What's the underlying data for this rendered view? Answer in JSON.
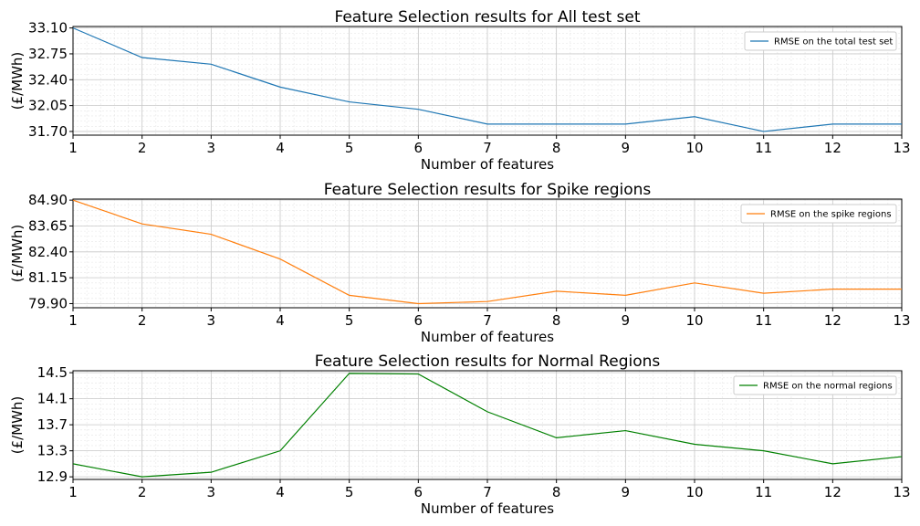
{
  "colors": {
    "blue": "#1f77b4",
    "orange": "#ff7f0e",
    "green": "#008000"
  },
  "chart_data": [
    {
      "type": "line",
      "title": "Feature Selection results for All test set",
      "xlabel": "Number of features",
      "ylabel": "(£/MWh)",
      "x": [
        1,
        2,
        3,
        4,
        5,
        6,
        7,
        8,
        9,
        10,
        11,
        12,
        13
      ],
      "xlim": [
        1,
        13
      ],
      "ylim": [
        31.65,
        33.12
      ],
      "yticks": [
        "31.70",
        "32.05",
        "32.40",
        "32.75",
        "33.10"
      ],
      "xticks": [
        "1",
        "2",
        "3",
        "4",
        "5",
        "6",
        "7",
        "8",
        "9",
        "10",
        "11",
        "12",
        "13"
      ],
      "grid": true,
      "legend_position": "top-right",
      "series": [
        {
          "name": "RMSE on the total test set",
          "color": "#1f77b4",
          "values": [
            33.1,
            32.7,
            32.61,
            32.3,
            32.1,
            32.0,
            31.8,
            31.8,
            31.8,
            31.9,
            31.7,
            31.8,
            31.8
          ]
        }
      ]
    },
    {
      "type": "line",
      "title": "Feature Selection results for Spike regions",
      "xlabel": "Number of features",
      "ylabel": "(£/MWh)",
      "x": [
        1,
        2,
        3,
        4,
        5,
        6,
        7,
        8,
        9,
        10,
        11,
        12,
        13
      ],
      "xlim": [
        1,
        13
      ],
      "ylim": [
        79.7,
        84.95
      ],
      "yticks": [
        "79.90",
        "81.15",
        "82.40",
        "83.65",
        "84.90"
      ],
      "xticks": [
        "1",
        "2",
        "3",
        "4",
        "5",
        "6",
        "7",
        "8",
        "9",
        "10",
        "11",
        "12",
        "13"
      ],
      "grid": true,
      "legend_position": "top-right",
      "series": [
        {
          "name": "RMSE on the spike regions",
          "color": "#ff7f0e",
          "values": [
            84.9,
            83.75,
            83.25,
            82.05,
            80.3,
            79.9,
            80.0,
            80.5,
            80.3,
            80.9,
            80.4,
            80.6,
            80.6
          ]
        }
      ]
    },
    {
      "type": "line",
      "title": "Feature Selection results for Normal Regions",
      "xlabel": "Number of features",
      "ylabel": "(£/MWh)",
      "x": [
        1,
        2,
        3,
        4,
        5,
        6,
        7,
        8,
        9,
        10,
        11,
        12,
        13
      ],
      "xlim": [
        1,
        13
      ],
      "ylim": [
        12.86,
        14.53
      ],
      "yticks": [
        "12.9",
        "13.3",
        "13.7",
        "14.1",
        "14.5"
      ],
      "xticks": [
        "1",
        "2",
        "3",
        "4",
        "5",
        "6",
        "7",
        "8",
        "9",
        "10",
        "11",
        "12",
        "13"
      ],
      "grid": true,
      "legend_position": "top-right",
      "series": [
        {
          "name": "RMSE on the normal regions",
          "color": "#008000",
          "values": [
            13.1,
            12.9,
            12.97,
            13.3,
            14.49,
            14.48,
            13.9,
            13.5,
            13.61,
            13.4,
            13.3,
            13.1,
            13.21
          ]
        }
      ]
    }
  ]
}
